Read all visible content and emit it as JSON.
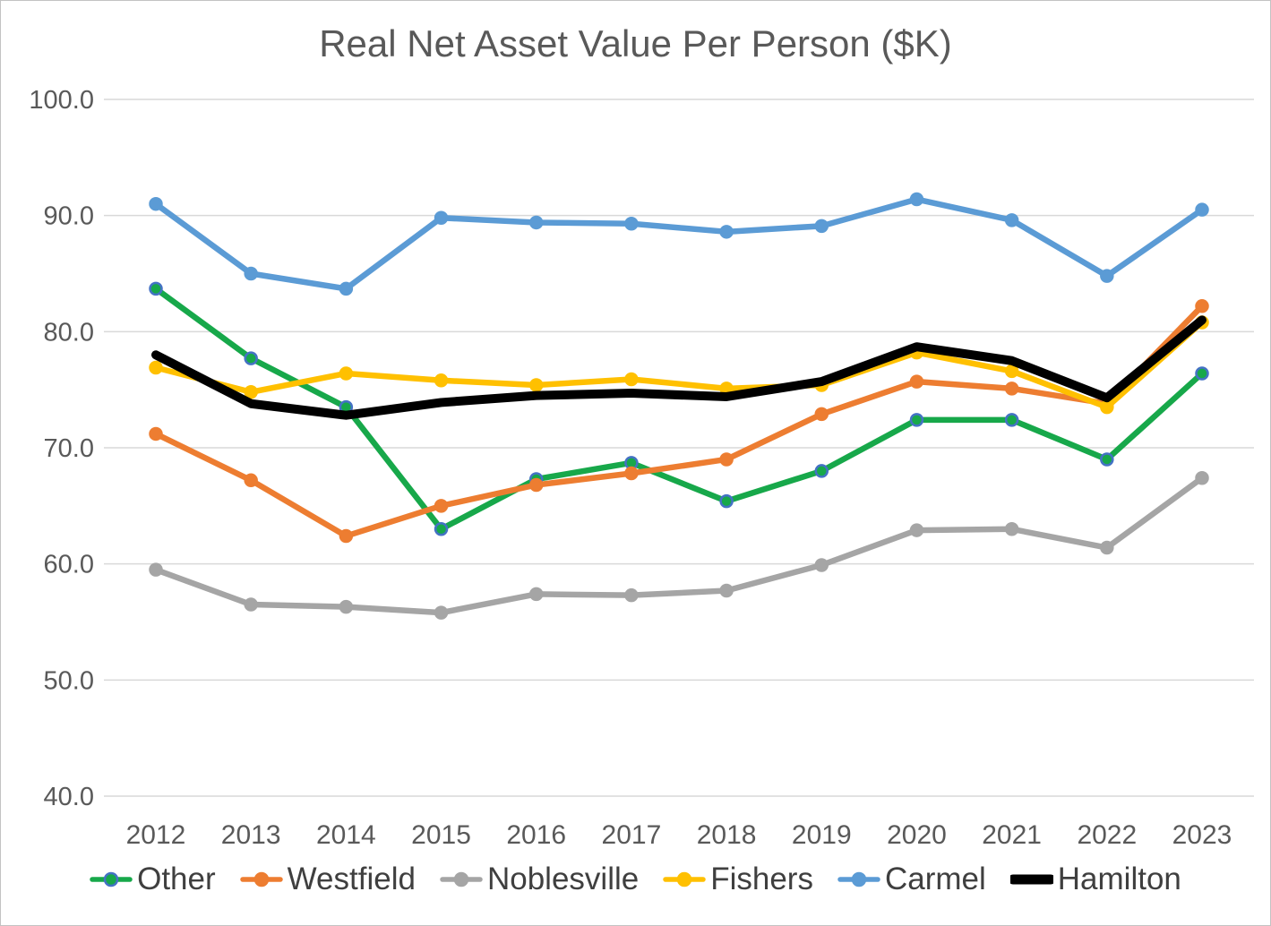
{
  "chart_data": {
    "type": "line",
    "title": "Real Net Asset Value Per Person ($K)",
    "xlabel": "",
    "ylabel": "",
    "categories": [
      "2012",
      "2013",
      "2014",
      "2015",
      "2016",
      "2017",
      "2018",
      "2019",
      "2020",
      "2021",
      "2022",
      "2023"
    ],
    "ylim": [
      40,
      100
    ],
    "y_ticks": [
      "40.0",
      "50.0",
      "60.0",
      "70.0",
      "80.0",
      "90.0",
      "100.0"
    ],
    "grid": true,
    "legend_position": "bottom",
    "series": [
      {
        "name": "Other",
        "color": "#17a84a",
        "marker": true,
        "marker_edge": "#4472c4",
        "line_width": 6.5,
        "values": [
          83.7,
          77.7,
          73.5,
          63.0,
          67.3,
          68.7,
          65.4,
          68.0,
          72.4,
          72.4,
          69.0,
          76.4
        ]
      },
      {
        "name": "Westfield",
        "color": "#ed7d31",
        "marker": true,
        "marker_edge": "#ed7d31",
        "line_width": 6.5,
        "values": [
          71.2,
          67.2,
          62.4,
          65.0,
          66.8,
          67.8,
          69.0,
          72.9,
          75.7,
          75.1,
          73.8,
          82.2
        ]
      },
      {
        "name": "Noblesville",
        "color": "#a5a5a5",
        "marker": true,
        "marker_edge": "#a5a5a5",
        "line_width": 6.5,
        "values": [
          59.5,
          56.5,
          56.3,
          55.8,
          57.4,
          57.3,
          57.7,
          59.9,
          62.9,
          63.0,
          61.4,
          67.4
        ]
      },
      {
        "name": "Fishers",
        "color": "#ffc000",
        "marker": true,
        "marker_edge": "#ffc000",
        "line_width": 6.5,
        "values": [
          76.9,
          74.8,
          76.4,
          75.8,
          75.4,
          75.9,
          75.1,
          75.4,
          78.2,
          76.6,
          73.5,
          80.8
        ]
      },
      {
        "name": "Carmel",
        "color": "#5b9bd5",
        "marker": true,
        "marker_edge": "#5b9bd5",
        "line_width": 6.5,
        "values": [
          91.0,
          85.0,
          83.7,
          89.8,
          89.4,
          89.3,
          88.6,
          89.1,
          91.4,
          89.6,
          84.8,
          90.5
        ]
      },
      {
        "name": "Hamilton",
        "color": "#000000",
        "marker": false,
        "marker_edge": "#000000",
        "line_width": 10,
        "values": [
          78.0,
          73.8,
          72.8,
          73.9,
          74.5,
          74.7,
          74.4,
          75.7,
          78.7,
          77.5,
          74.3,
          81.0
        ]
      }
    ],
    "style_colors": {
      "title_text": "#595959",
      "axis_text": "#595959",
      "legend_text": "#3f3f3f",
      "gridline": "#d9d9d9"
    }
  }
}
